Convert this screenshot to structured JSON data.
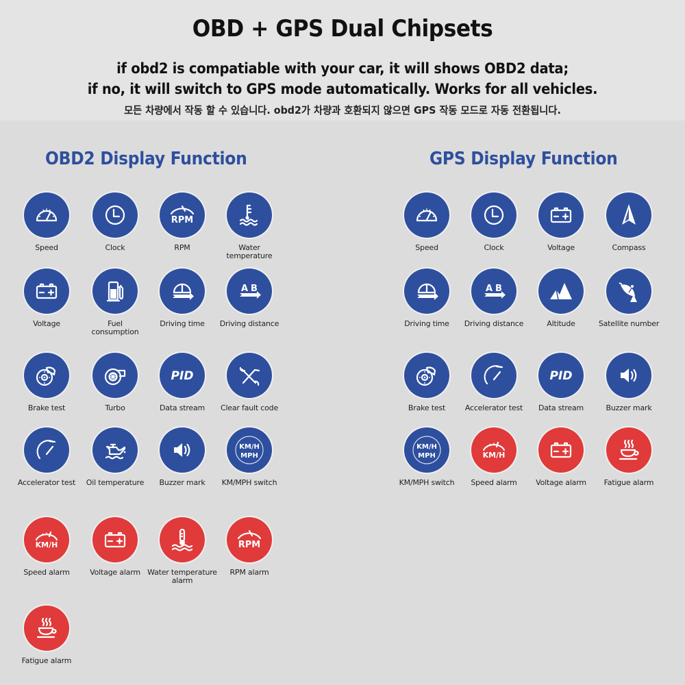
{
  "header": {
    "title": "OBD + GPS Dual Chipsets",
    "line1": "if obd2 is compatiable with your car, it will shows OBD2 data;",
    "line2": "if no, it will switch to GPS mode automatically. Works for all vehicles.",
    "line_korean": "모든 차량에서 작동 할 수 있습니다. obd2가 차량과 호환되지 않으면 GPS 작동 모드로 자동 전환됩니다."
  },
  "colors": {
    "function_blue": "#2e4f9e",
    "alarm_red": "#e03a3a",
    "background": "#dcdcdc"
  },
  "obd2": {
    "title": "OBD2 Display Function",
    "items": [
      {
        "label": "Speed",
        "icon": "speedometer-icon",
        "color": "blue"
      },
      {
        "label": "Clock",
        "icon": "clock-icon",
        "color": "blue"
      },
      {
        "label": "RPM",
        "icon": "rpm-gauge-icon",
        "color": "blue"
      },
      {
        "label": "Water temperature",
        "icon": "water-temperature-icon",
        "color": "blue"
      },
      {
        "label": "Voltage",
        "icon": "battery-icon",
        "color": "blue"
      },
      {
        "label": "Fuel consumption",
        "icon": "fuel-pump-icon",
        "color": "blue"
      },
      {
        "label": "Driving time",
        "icon": "driving-time-icon",
        "color": "blue"
      },
      {
        "label": "Driving distance",
        "icon": "a-to-b-distance-icon",
        "color": "blue"
      },
      {
        "label": "Brake test",
        "icon": "brake-disc-icon",
        "color": "blue"
      },
      {
        "label": "Turbo",
        "icon": "turbo-icon",
        "color": "blue"
      },
      {
        "label": "Data stream",
        "icon": "pid-icon",
        "color": "blue"
      },
      {
        "label": "Clear fault code",
        "icon": "wrench-tools-icon",
        "color": "blue"
      },
      {
        "label": "Accelerator test",
        "icon": "accelerator-gauge-icon",
        "color": "blue"
      },
      {
        "label": "Oil temperature",
        "icon": "oil-can-icon",
        "color": "blue"
      },
      {
        "label": "Buzzer mark",
        "icon": "speaker-icon",
        "color": "blue"
      },
      {
        "label": "KM/MPH switch",
        "icon": "kmh-mph-icon",
        "color": "blue"
      },
      {
        "label": "Speed alarm",
        "icon": "speed-alarm-icon",
        "color": "red"
      },
      {
        "label": "Voltage alarm",
        "icon": "battery-alarm-icon",
        "color": "red"
      },
      {
        "label": "Water temperature alarm",
        "icon": "water-temperature-alarm-icon",
        "color": "red"
      },
      {
        "label": "RPM alarm",
        "icon": "rpm-alarm-icon",
        "color": "red"
      },
      {
        "label": "Fatigue alarm",
        "icon": "coffee-cup-icon",
        "color": "red"
      }
    ]
  },
  "gps": {
    "title": "GPS Display Function",
    "items": [
      {
        "label": "Speed",
        "icon": "speedometer-icon",
        "color": "blue"
      },
      {
        "label": "Clock",
        "icon": "clock-icon",
        "color": "blue"
      },
      {
        "label": "Voltage",
        "icon": "battery-icon",
        "color": "blue"
      },
      {
        "label": "Compass",
        "icon": "compass-arrow-icon",
        "color": "blue"
      },
      {
        "label": "Driving time",
        "icon": "driving-time-icon",
        "color": "blue"
      },
      {
        "label": "Driving distance",
        "icon": "a-to-b-distance-icon",
        "color": "blue"
      },
      {
        "label": "Altitude",
        "icon": "mountain-icon",
        "color": "blue"
      },
      {
        "label": "Satellite number",
        "icon": "satellite-dish-icon",
        "color": "blue"
      },
      {
        "label": "Brake test",
        "icon": "brake-disc-icon",
        "color": "blue"
      },
      {
        "label": "Accelerator test",
        "icon": "accelerator-gauge-icon",
        "color": "blue"
      },
      {
        "label": "Data stream",
        "icon": "pid-icon",
        "color": "blue"
      },
      {
        "label": "Buzzer mark",
        "icon": "speaker-icon",
        "color": "blue"
      },
      {
        "label": "KM/MPH switch",
        "icon": "kmh-mph-icon",
        "color": "blue"
      },
      {
        "label": "Speed alarm",
        "icon": "speed-alarm-icon",
        "color": "red"
      },
      {
        "label": "Voltage alarm",
        "icon": "battery-alarm-icon",
        "color": "red"
      },
      {
        "label": "Fatigue alarm",
        "icon": "coffee-cup-icon",
        "color": "red"
      }
    ]
  },
  "icon_text": {
    "rpm": "RPM",
    "pid": "PID",
    "kmh": "KM/H",
    "mph": "MPH",
    "a": "A",
    "b": "B"
  }
}
